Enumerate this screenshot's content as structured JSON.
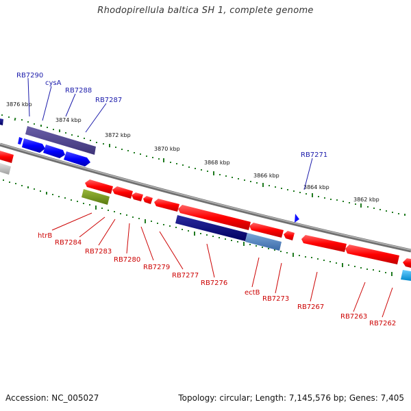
{
  "title": "Rhodopirellula baltica SH 1, complete genome",
  "footer": {
    "accession": "Accession: NC_005027",
    "summary": "Topology: circular; Length: 7,145,576 bp; Genes: 7,405"
  },
  "colors": {
    "backbone": "#808080",
    "forward_gene": "#1a1aff",
    "reverse_gene": "#ff0000",
    "tick": "#1f7a1f",
    "label_forward": "#1a1aaa",
    "label_reverse": "#cc0000"
  },
  "scale_labels": [
    "3876 kbp",
    "3874 kbp",
    "3872 kbp",
    "3870 kbp",
    "3868 kbp",
    "3866 kbp",
    "3864 kbp",
    "3862 kbp"
  ],
  "forward_labels": [
    "RB7290",
    "cysA",
    "RB7288",
    "RB7287",
    "RB7271"
  ],
  "reverse_labels": [
    "htrB",
    "RB7284",
    "RB7283",
    "RB7280",
    "RB7279",
    "RB7277",
    "RB7276",
    "ectB",
    "RB7273",
    "RB7267",
    "RB7263",
    "RB7262"
  ]
}
